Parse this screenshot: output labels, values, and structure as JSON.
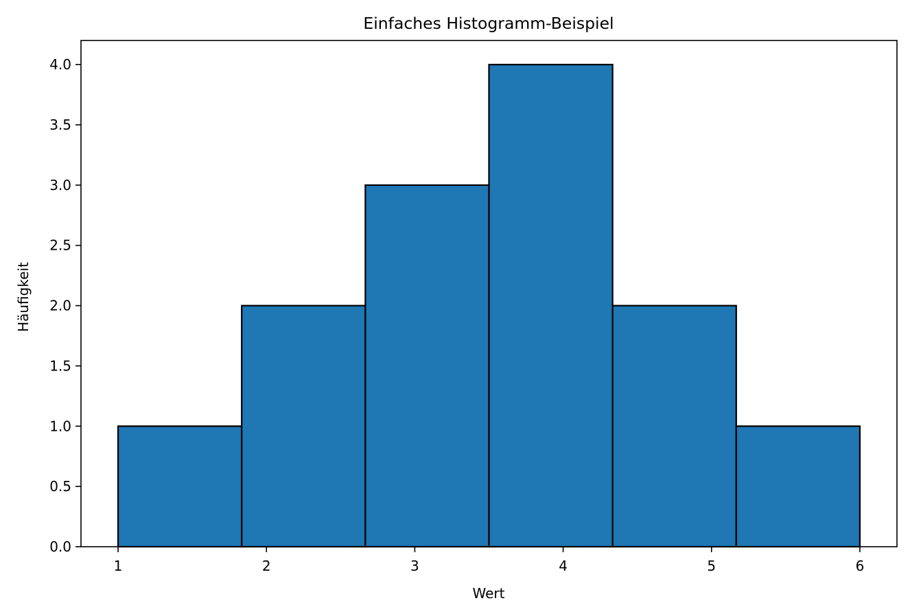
{
  "chart_data": {
    "type": "bar",
    "subtype": "histogram",
    "title": "Einfaches Histogramm-Beispiel",
    "xlabel": "Wert",
    "ylabel": "Häufigkeit",
    "bin_edges": [
      1.0,
      1.8333,
      2.6667,
      3.5,
      4.3333,
      5.1667,
      6.0
    ],
    "values": [
      1,
      2,
      3,
      4,
      2,
      1
    ],
    "xlim": [
      0.75,
      6.25
    ],
    "ylim": [
      0,
      4.2
    ],
    "xticks": [
      1,
      2,
      3,
      4,
      5,
      6
    ],
    "xtick_labels": [
      "1",
      "2",
      "3",
      "4",
      "5",
      "6"
    ],
    "yticks": [
      0,
      0.5,
      1,
      1.5,
      2,
      2.5,
      3,
      3.5,
      4
    ],
    "ytick_labels": [
      "0.0",
      "0.5",
      "1.0",
      "1.5",
      "2.0",
      "2.5",
      "3.0",
      "3.5",
      "4.0"
    ],
    "grid": false,
    "colors": {
      "bar_fill": "#1f77b4",
      "bar_edge": "#000000",
      "axes": "#000000"
    }
  }
}
